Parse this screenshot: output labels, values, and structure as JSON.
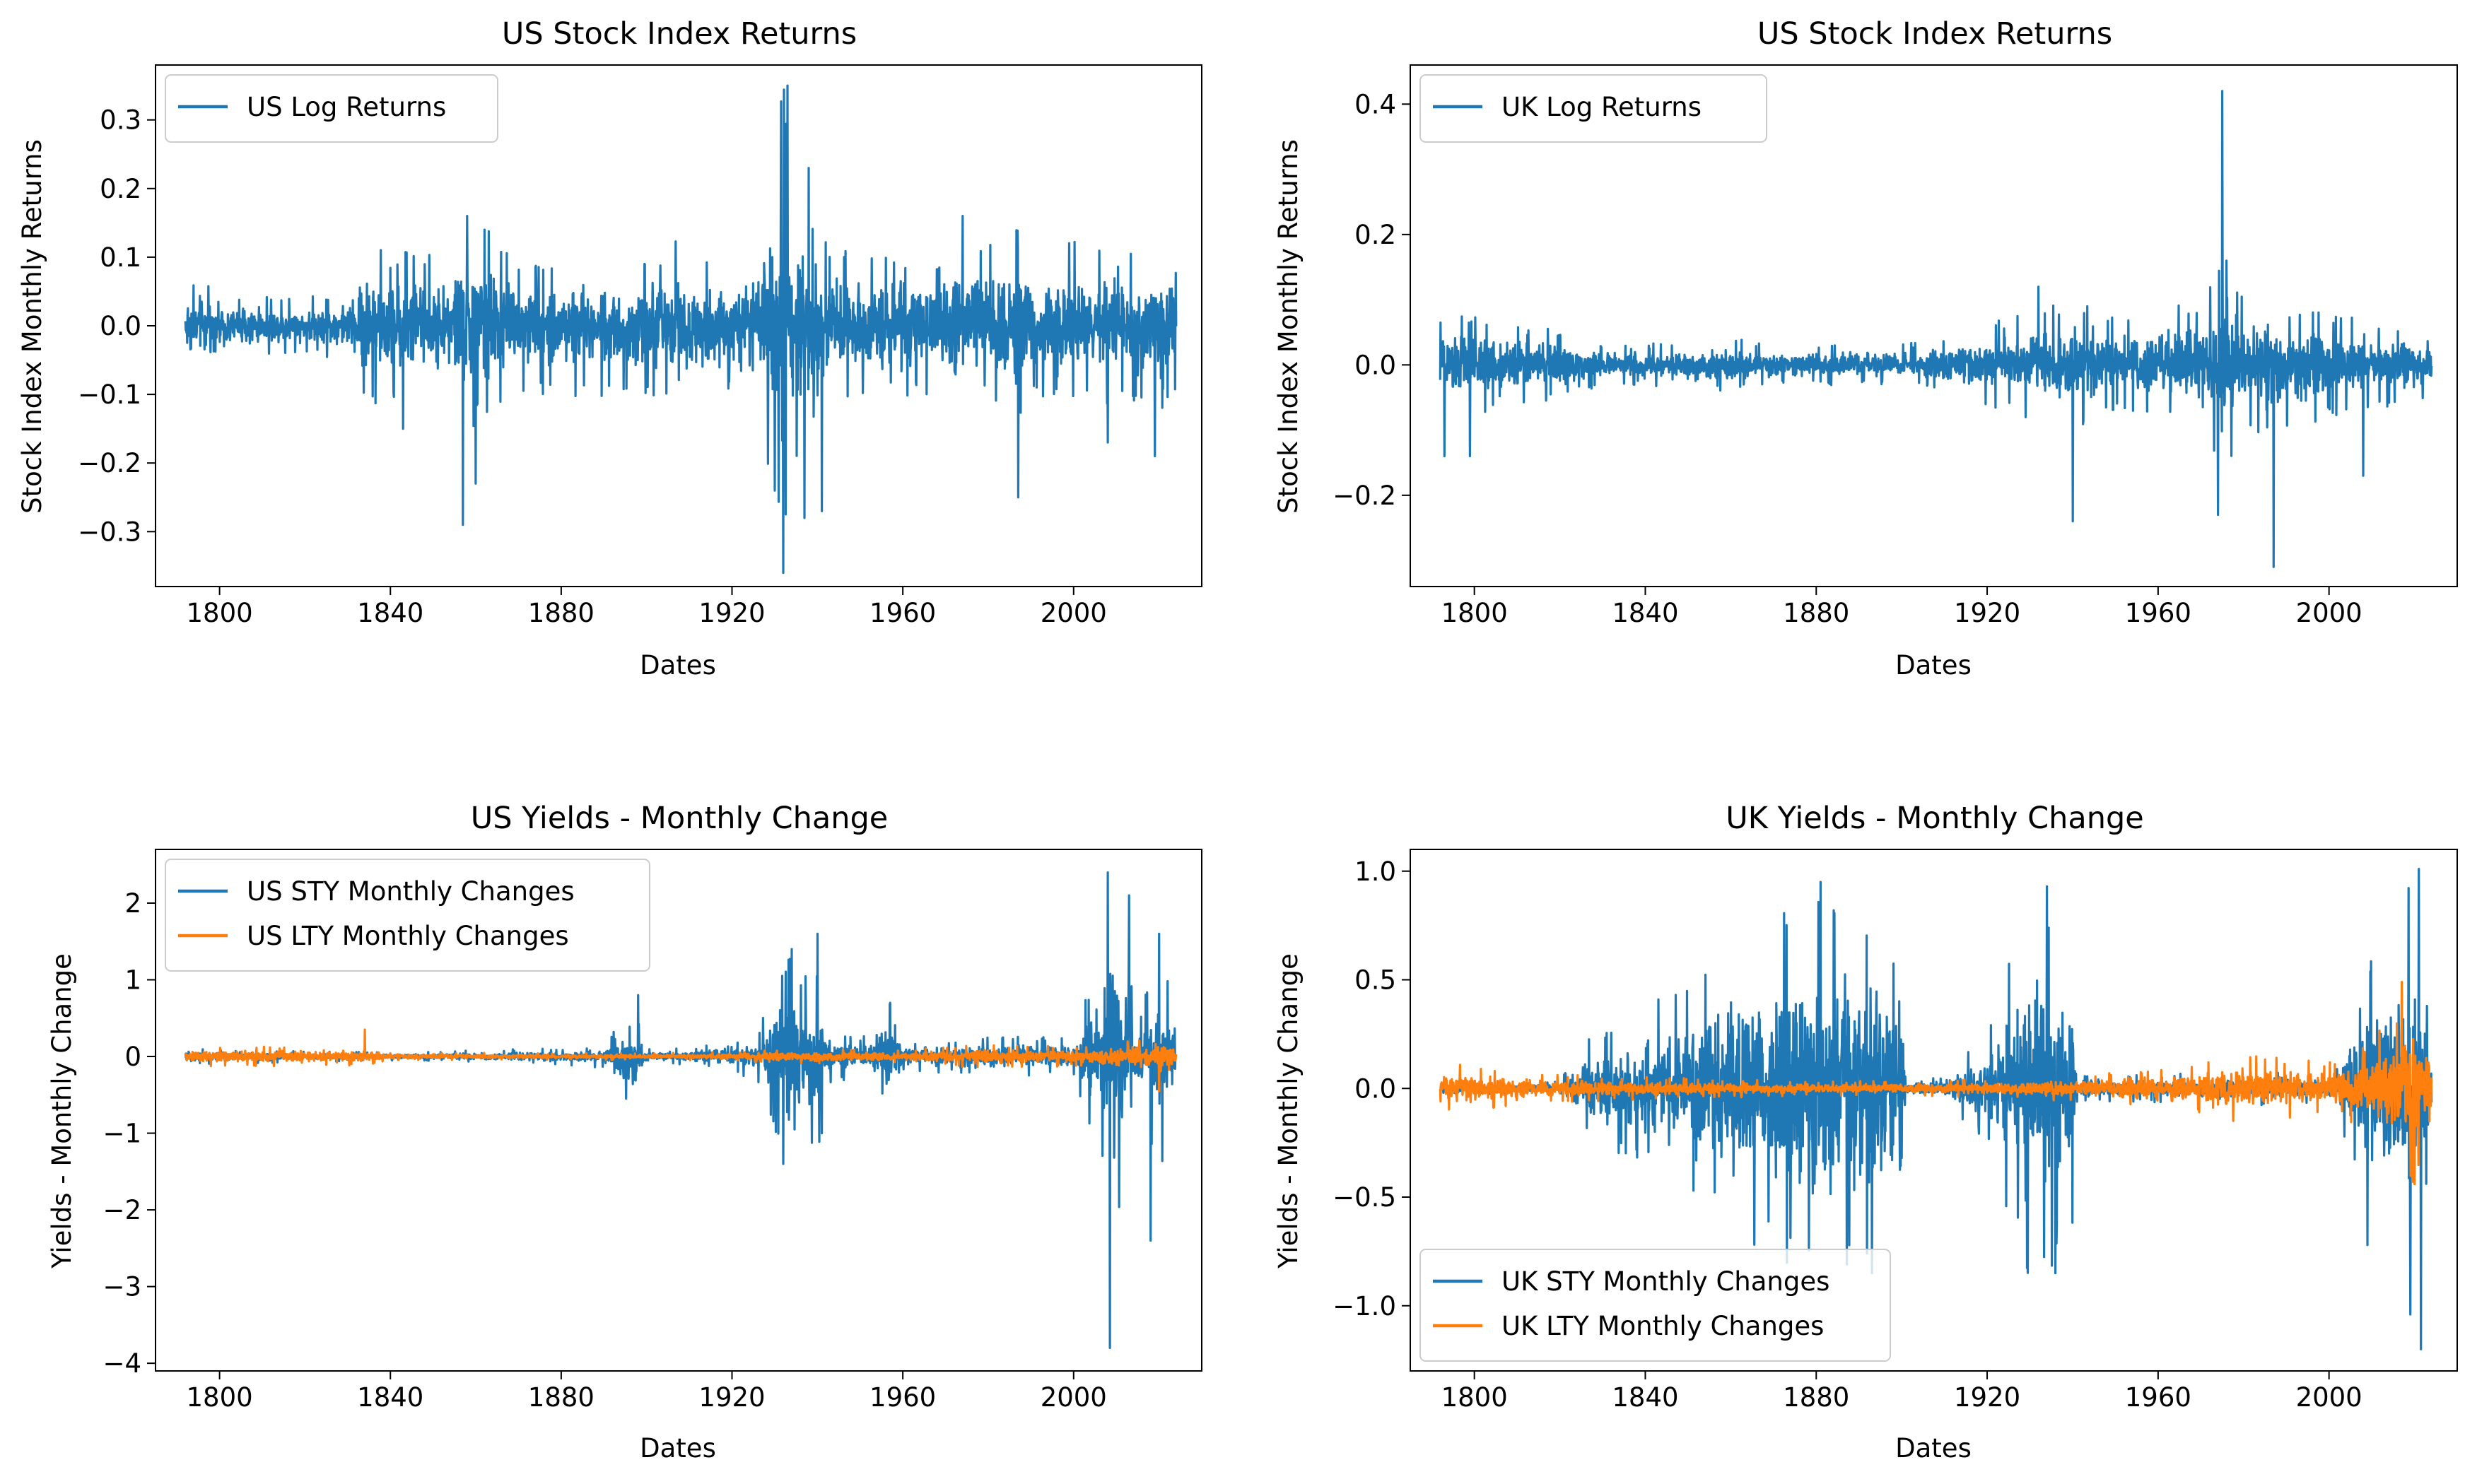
{
  "figure": {
    "colors": {
      "blue": "#1f77b4",
      "orange": "#ff7f0e",
      "axis": "#000000"
    }
  },
  "chart_data": [
    {
      "type": "line",
      "title": "US Stock Index Returns",
      "xlabel": "Dates",
      "ylabel": "Stock Index Monthly Returns",
      "xlim": [
        1785,
        2030
      ],
      "ylim": [
        -0.38,
        0.38
      ],
      "xticks": [
        1800,
        1840,
        1880,
        1920,
        1960,
        2000
      ],
      "yticks": [
        -0.3,
        -0.2,
        -0.1,
        0.0,
        0.1,
        0.2,
        0.3
      ],
      "ytick_labels": [
        "−0.3",
        "−0.2",
        "−0.1",
        "0.0",
        "0.1",
        "0.2",
        "0.3"
      ],
      "legend": "upper-left",
      "grid": false,
      "series": [
        {
          "name": "US Log Returns",
          "color": "#1f77b4",
          "x": [
            1792,
            1800,
            1810,
            1820,
            1830,
            1834,
            1840,
            1844,
            1850,
            1854,
            1857,
            1860,
            1862,
            1870,
            1880,
            1890,
            1900,
            1907,
            1914,
            1920,
            1926,
            1929,
            1931,
            1932,
            1933,
            1935,
            1937,
            1940,
            1950,
            1960,
            1970,
            1974,
            1980,
            1987,
            1990,
            2000,
            2002,
            2008,
            2010,
            2020,
            2024
          ],
          "amplitude": [
            0.08,
            0.05,
            0.04,
            0.04,
            0.05,
            0.12,
            0.1,
            0.12,
            0.1,
            0.13,
            0.16,
            0.14,
            0.14,
            0.1,
            0.1,
            0.1,
            0.1,
            0.12,
            0.1,
            0.1,
            0.1,
            0.22,
            0.3,
            0.35,
            0.3,
            0.2,
            0.2,
            0.12,
            0.1,
            0.1,
            0.1,
            0.16,
            0.12,
            0.14,
            0.1,
            0.12,
            0.1,
            0.12,
            0.1,
            0.12,
            0.09
          ],
          "extremes": [
            [
              1857,
              -0.29
            ],
            [
              1858,
              0.16
            ],
            [
              1860,
              -0.23
            ],
            [
              1862,
              0.14
            ],
            [
              1843,
              -0.15
            ],
            [
              1932,
              -0.36
            ],
            [
              1933,
              0.35
            ],
            [
              1930,
              -0.24
            ],
            [
              1937,
              -0.28
            ],
            [
              1938,
              0.23
            ],
            [
              1941,
              -0.27
            ],
            [
              1974,
              0.16
            ],
            [
              1987,
              -0.25
            ],
            [
              2008,
              -0.17
            ],
            [
              2019,
              -0.19
            ]
          ]
        }
      ]
    },
    {
      "type": "line",
      "title": "US Stock Index Returns",
      "xlabel": "Dates",
      "ylabel": "Stock Index Monthly Returns",
      "xlim": [
        1785,
        2030
      ],
      "ylim": [
        -0.34,
        0.46
      ],
      "xticks": [
        1800,
        1840,
        1880,
        1920,
        1960,
        2000
      ],
      "yticks": [
        -0.2,
        0.0,
        0.2,
        0.4
      ],
      "ytick_labels": [
        "−0.2",
        "0.0",
        "0.2",
        "0.4"
      ],
      "legend": "upper-left",
      "grid": false,
      "series": [
        {
          "name": "UK Log Returns",
          "color": "#1f77b4",
          "x": [
            1792,
            1800,
            1810,
            1820,
            1830,
            1840,
            1850,
            1860,
            1870,
            1880,
            1890,
            1900,
            1910,
            1920,
            1930,
            1940,
            1950,
            1960,
            1970,
            1974,
            1975,
            1980,
            1987,
            1990,
            2000,
            2010,
            2020,
            2024
          ],
          "amplitude": [
            0.08,
            0.08,
            0.06,
            0.05,
            0.03,
            0.03,
            0.04,
            0.04,
            0.03,
            0.03,
            0.03,
            0.03,
            0.04,
            0.06,
            0.08,
            0.1,
            0.07,
            0.08,
            0.1,
            0.14,
            0.18,
            0.1,
            0.12,
            0.09,
            0.08,
            0.07,
            0.06,
            0.05
          ],
          "extremes": [
            [
              1793,
              -0.14
            ],
            [
              1799,
              -0.14
            ],
            [
              1940,
              -0.24
            ],
            [
              1932,
              0.12
            ],
            [
              1974,
              -0.23
            ],
            [
              1975,
              0.42
            ],
            [
              1976,
              0.16
            ],
            [
              1987,
              -0.31
            ],
            [
              2008,
              -0.17
            ]
          ]
        }
      ]
    },
    {
      "type": "line",
      "title": "US Yields - Monthly Change",
      "xlabel": "Dates",
      "ylabel": "Yields - Monthly Change",
      "xlim": [
        1785,
        2030
      ],
      "ylim": [
        -4.1,
        2.7
      ],
      "xticks": [
        1800,
        1840,
        1880,
        1920,
        1960,
        2000
      ],
      "yticks": [
        -4,
        -3,
        -2,
        -1,
        0,
        1,
        2
      ],
      "ytick_labels": [
        "−4",
        "−3",
        "−2",
        "−1",
        "0",
        "1",
        "2"
      ],
      "legend": "upper-left",
      "grid": false,
      "series": [
        {
          "name": "US STY Monthly Changes",
          "color": "#1f77b4",
          "x": [
            1792,
            1840,
            1860,
            1880,
            1890,
            1895,
            1897,
            1900,
            1910,
            1920,
            1926,
            1931,
            1933,
            1936,
            1940,
            1942,
            1950,
            1957,
            1960,
            1970,
            1980,
            2000,
            2007,
            2009,
            2012,
            2015,
            2020,
            2024
          ],
          "amplitude": [
            0.1,
            0.05,
            0.08,
            0.1,
            0.15,
            0.55,
            0.65,
            0.1,
            0.1,
            0.2,
            0.3,
            1.1,
            1.4,
            1.0,
            1.3,
            0.4,
            0.2,
            0.7,
            0.2,
            0.2,
            0.25,
            0.25,
            1.5,
            2.3,
            1.8,
            0.4,
            1.6,
            0.3
          ],
          "extremes": [
            [
              2008,
              2.4
            ],
            [
              2008.5,
              -3.8
            ],
            [
              2013,
              2.1
            ],
            [
              2018,
              -2.4
            ],
            [
              2020,
              1.6
            ],
            [
              1932,
              -1.4
            ],
            [
              1934,
              1.4
            ],
            [
              1940,
              1.6
            ],
            [
              1941,
              -1.0
            ],
            [
              1898,
              0.8
            ],
            [
              1957,
              0.7
            ]
          ]
        },
        {
          "name": "US LTY Monthly Changes",
          "color": "#ff7f0e",
          "x": [
            1792,
            1834,
            1840,
            1900,
            1920,
            1940,
            1960,
            1980,
            2000,
            2010,
            2020,
            2024
          ],
          "amplitude": [
            0.12,
            0.12,
            0.05,
            0.04,
            0.06,
            0.1,
            0.08,
            0.15,
            0.12,
            0.2,
            0.28,
            0.15
          ],
          "extremes": [
            [
              1834,
              0.35
            ],
            [
              2020,
              -0.45
            ]
          ]
        }
      ]
    },
    {
      "type": "line",
      "title": "UK Yields - Monthly Change",
      "xlabel": "Dates",
      "ylabel": "Yields - Monthly Change",
      "xlim": [
        1785,
        2030
      ],
      "ylim": [
        -1.3,
        1.1
      ],
      "xticks": [
        1800,
        1840,
        1880,
        1920,
        1960,
        2000
      ],
      "yticks": [
        -1.0,
        -0.5,
        0.0,
        0.5,
        1.0
      ],
      "ytick_labels": [
        "−1.0",
        "−0.5",
        "0.0",
        "0.5",
        "1.0"
      ],
      "legend": "lower-left",
      "grid": false,
      "series": [
        {
          "name": "UK STY Monthly Changes",
          "color": "#1f77b4",
          "x": [
            1792,
            1820,
            1825,
            1840,
            1855,
            1870,
            1880,
            1890,
            1895,
            1900,
            1901,
            1910,
            1920,
            1925,
            1930,
            1935,
            1940,
            1941,
            1960,
            1980,
            2000,
            2005,
            2010,
            2015,
            2020,
            2024
          ],
          "amplitude": [
            0.02,
            0.03,
            0.2,
            0.35,
            0.55,
            0.75,
            0.85,
            0.9,
            0.8,
            0.6,
            0.05,
            0.05,
            0.25,
            0.55,
            0.85,
            0.8,
            0.65,
            0.06,
            0.06,
            0.08,
            0.06,
            0.3,
            0.6,
            0.7,
            0.95,
            0.2
          ],
          "extremes": [
            [
              1881,
              0.95
            ],
            [
              1893,
              -0.85
            ],
            [
              1934,
              0.93
            ],
            [
              1936,
              -0.85
            ],
            [
              2021,
              1.01
            ],
            [
              2021.5,
              -1.2
            ],
            [
              2019,
              -1.04
            ],
            [
              2009,
              -0.72
            ]
          ]
        },
        {
          "name": "UK LTY Monthly Changes",
          "color": "#ff7f0e",
          "x": [
            1792,
            1800,
            1820,
            1840,
            1880,
            1920,
            1950,
            1970,
            1980,
            2000,
            2010,
            2016,
            2020,
            2024
          ],
          "amplitude": [
            0.12,
            0.1,
            0.06,
            0.05,
            0.03,
            0.04,
            0.07,
            0.12,
            0.15,
            0.12,
            0.22,
            0.35,
            0.45,
            0.2
          ],
          "extremes": [
            [
              2017,
              0.49
            ],
            [
              2020,
              -0.44
            ]
          ]
        }
      ]
    }
  ]
}
